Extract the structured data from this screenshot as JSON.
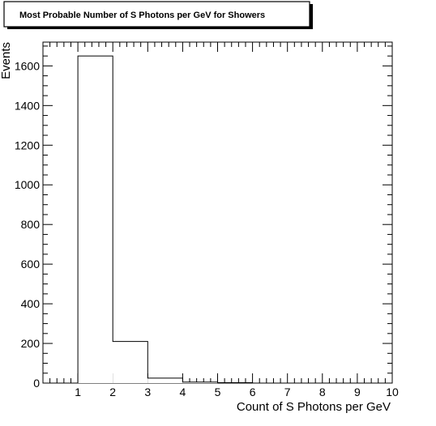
{
  "chart_data": {
    "type": "bar",
    "title": "Most Probable Number of S Photons per GeV for Showers",
    "xlabel": "Count of S Photons per GeV",
    "ylabel": "Events",
    "xlim": [
      0,
      10
    ],
    "ylim": [
      0,
      1720
    ],
    "x_ticks": [
      1,
      2,
      3,
      4,
      5,
      6,
      7,
      8,
      9,
      10
    ],
    "y_ticks": [
      0,
      200,
      400,
      600,
      800,
      1000,
      1200,
      1400,
      1600
    ],
    "bins": [
      {
        "x_low": 1,
        "x_high": 2,
        "value": 1650
      },
      {
        "x_low": 2,
        "x_high": 3,
        "value": 210
      },
      {
        "x_low": 3,
        "x_high": 4,
        "value": 25
      },
      {
        "x_low": 4,
        "x_high": 5,
        "value": 5
      },
      {
        "x_low": 5,
        "x_high": 6,
        "value": 2
      }
    ],
    "grid": false,
    "line_color": "#000000",
    "fill_color": "#ffffff"
  }
}
